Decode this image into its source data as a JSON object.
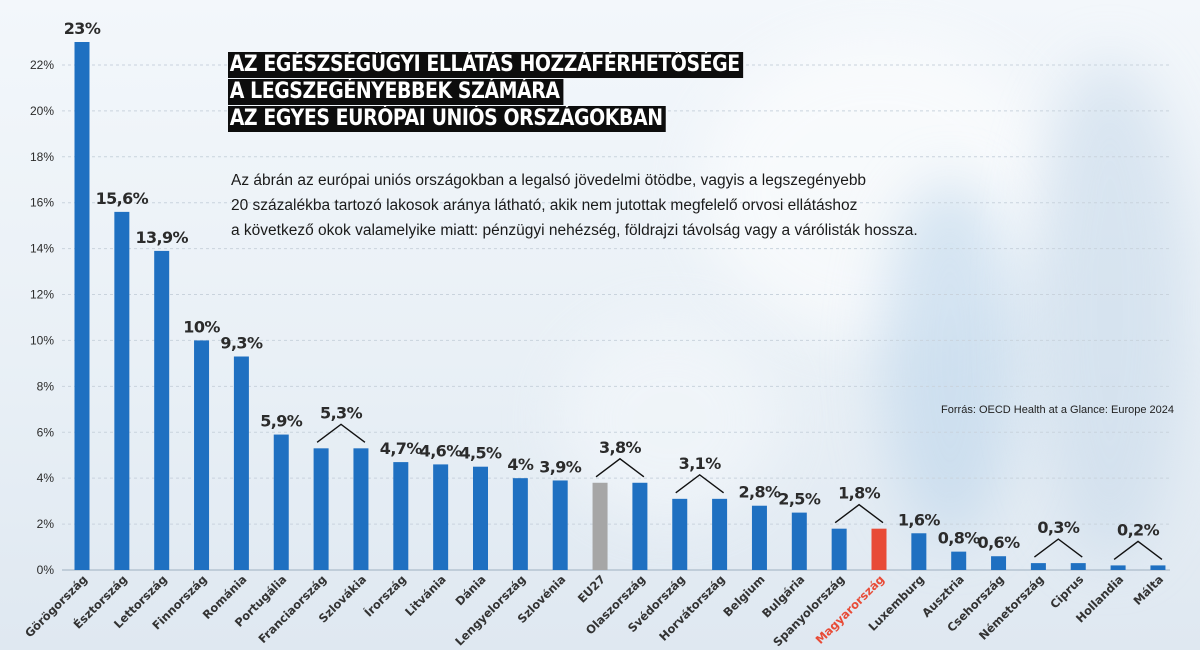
{
  "title_lines": [
    "AZ EGÉSZSÉGÜGYI ELLÁTÁS HOZZÁFÉRHETŐSÉGE",
    "A LEGSZEGÉNYEBBEK SZÁMÁRA",
    "AZ EGYES EURÓPAI UNIÓS ORSZÁGOKBAN"
  ],
  "subtitle_lines": [
    "Az ábrán az európai uniós országokban a legalsó jövedelmi ötödbe, vagyis a legszegényebb",
    "20 százalékba tartozó lakosok aránya látható, akik nem jutottak megfelelő orvosi ellátáshoz",
    "a következő okok valamelyike miatt: pénzügyi nehézség, földrajzi távolság vagy a várólisták hossza."
  ],
  "source": "Forrás: OECD Health at a Glance: Europe 2024",
  "colors": {
    "bar": "#1f70c1",
    "eu27": "#a6a6a6",
    "hungary": "#e84b37",
    "hungary_label": "#e84b37",
    "text": "#2b2b2b"
  },
  "chart_data": {
    "type": "bar",
    "ylim": [
      0,
      23
    ],
    "yticks": [
      0,
      2,
      4,
      6,
      8,
      10,
      12,
      14,
      16,
      18,
      20,
      22
    ],
    "ytick_labels": [
      "0%",
      "2%",
      "4%",
      "6%",
      "8%",
      "10%",
      "12%",
      "14%",
      "16%",
      "18%",
      "20%",
      "22%"
    ],
    "grid": true,
    "categories": [
      "Görögország",
      "Észtország",
      "Lettország",
      "Finnország",
      "Románia",
      "Portugália",
      "Franciaország",
      "Szlovákia",
      "Írország",
      "Litvánia",
      "Dánia",
      "Lengyelország",
      "Szlovénia",
      "EU27",
      "Olaszország",
      "Svédország",
      "Horvátország",
      "Belgium",
      "Bulgária",
      "Spanyolország",
      "Magyarország",
      "Luxemburg",
      "Ausztria",
      "Csehország",
      "Németország",
      "Ciprus",
      "Hollandia",
      "Málta"
    ],
    "values": [
      23,
      15.6,
      13.9,
      10,
      9.3,
      5.9,
      5.3,
      5.3,
      4.7,
      4.6,
      4.5,
      4,
      3.9,
      3.8,
      3.8,
      3.1,
      3.1,
      2.8,
      2.5,
      1.8,
      1.8,
      1.6,
      0.8,
      0.6,
      0.3,
      0.3,
      0.2,
      0.2
    ],
    "value_labels": [
      {
        "text": "23%",
        "bars": [
          0
        ]
      },
      {
        "text": "15,6%",
        "bars": [
          1
        ]
      },
      {
        "text": "13,9%",
        "bars": [
          2
        ]
      },
      {
        "text": "10%",
        "bars": [
          3
        ]
      },
      {
        "text": "9,3%",
        "bars": [
          4
        ]
      },
      {
        "text": "5,9%",
        "bars": [
          5
        ]
      },
      {
        "text": "5,3%",
        "bars": [
          6,
          7
        ]
      },
      {
        "text": "4,7%",
        "bars": [
          8
        ]
      },
      {
        "text": "4,6%",
        "bars": [
          9
        ]
      },
      {
        "text": "4,5%",
        "bars": [
          10
        ]
      },
      {
        "text": "4%",
        "bars": [
          11
        ]
      },
      {
        "text": "3,9%",
        "bars": [
          12
        ]
      },
      {
        "text": "3,8%",
        "bars": [
          13,
          14
        ]
      },
      {
        "text": "3,1%",
        "bars": [
          15,
          16
        ]
      },
      {
        "text": "2,8%",
        "bars": [
          17
        ]
      },
      {
        "text": "2,5%",
        "bars": [
          18
        ]
      },
      {
        "text": "1,8%",
        "bars": [
          19,
          20
        ]
      },
      {
        "text": "1,6%",
        "bars": [
          21
        ]
      },
      {
        "text": "0,8%",
        "bars": [
          22
        ]
      },
      {
        "text": "0,6%",
        "bars": [
          23
        ]
      },
      {
        "text": "0,3%",
        "bars": [
          24,
          25
        ]
      },
      {
        "text": "0,2%",
        "bars": [
          26,
          27
        ]
      }
    ],
    "highlight": {
      "EU27": "eu27",
      "Magyarország": "hungary"
    }
  }
}
